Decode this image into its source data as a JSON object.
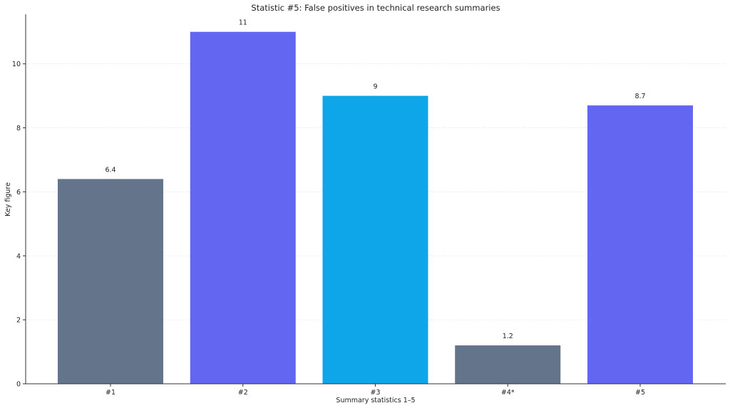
{
  "chart_data": {
    "type": "bar",
    "title": "Statistic #5: False positives in technical research summaries",
    "xlabel": "Summary statistics 1–5",
    "ylabel": "Key figure",
    "categories": [
      "#1",
      "#2",
      "#3",
      "#4*",
      "#5"
    ],
    "values": [
      6.4,
      11,
      9,
      1.2,
      8.7
    ],
    "value_labels": [
      "6.4",
      "11",
      "9",
      "1.2",
      "8.7"
    ],
    "colors": [
      "#64748b",
      "#6366f1",
      "#0ea5e9",
      "#64748b",
      "#6366f1"
    ],
    "ylim": [
      0,
      11.55
    ],
    "yticks": [
      0,
      2,
      4,
      6,
      8,
      10
    ],
    "ytick_labels": [
      "0",
      "2",
      "4",
      "6",
      "8",
      "10"
    ],
    "grid": "horizontal-dashed",
    "legend": "none"
  }
}
